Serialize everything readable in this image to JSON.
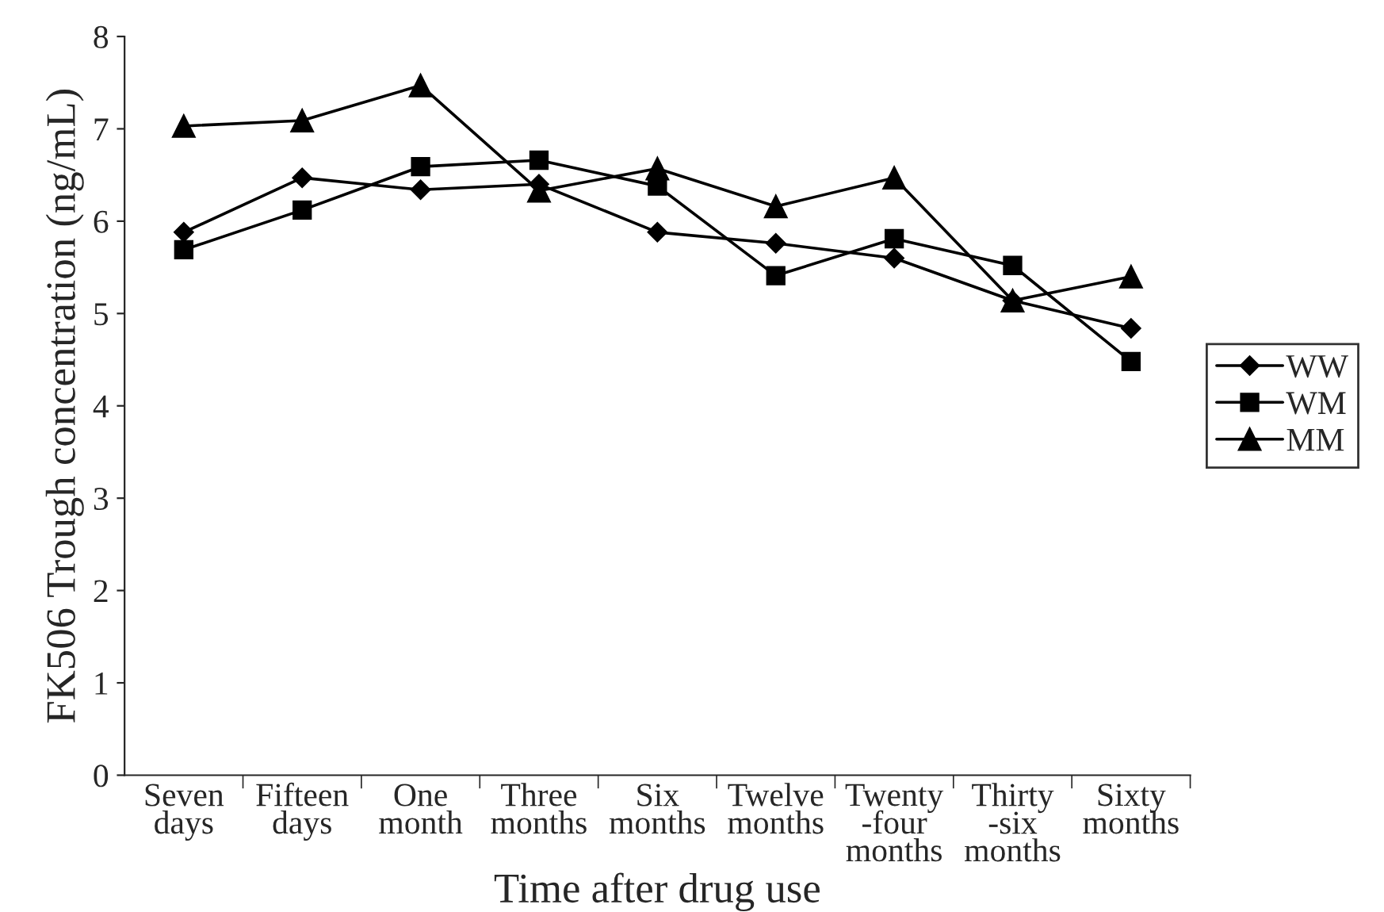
{
  "chart_data": {
    "type": "line",
    "xlabel": "Time after drug use",
    "ylabel": "FK506 Trough concentration (ng/mL)",
    "categories": [
      "Seven\ndays",
      "Fifteen\ndays",
      "One\nmonth",
      "Three\nmonths",
      "Six\nmonths",
      "Twelve\nmonths",
      "Twenty\n-four\nmonths",
      "Thirty\n-six\nmonths",
      "Sixty\nmonths"
    ],
    "series": [
      {
        "name": "WW",
        "color": "#000000",
        "marker": "diamond",
        "values": [
          5.88,
          6.47,
          6.34,
          6.4,
          5.88,
          5.76,
          5.6,
          5.14,
          4.84
        ]
      },
      {
        "name": "WM",
        "color": "#000000",
        "marker": "square",
        "values": [
          5.69,
          6.12,
          6.59,
          6.66,
          6.38,
          5.41,
          5.81,
          5.52,
          4.48
        ]
      },
      {
        "name": "MM",
        "color": "#000000",
        "marker": "triangle",
        "values": [
          7.03,
          7.09,
          7.47,
          6.33,
          6.57,
          6.16,
          6.47,
          5.14,
          5.4
        ]
      }
    ],
    "ylim": [
      0,
      8
    ],
    "yticks": [
      0,
      1,
      2,
      3,
      4,
      5,
      6,
      7,
      8
    ],
    "grid": false,
    "legend": "right",
    "line_style": "solid"
  }
}
